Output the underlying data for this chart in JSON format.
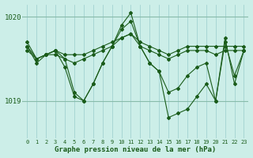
{
  "title": "Graphe pression niveau de la mer (hPa)",
  "bg_color": "#cceee8",
  "grid_color": "#99cccc",
  "line_color": "#1a5c1a",
  "xlim": [
    -0.5,
    23.5
  ],
  "ylim": [
    1018.55,
    1020.15
  ],
  "yticks": [
    1019,
    1020
  ],
  "xticks": [
    0,
    1,
    2,
    3,
    4,
    5,
    6,
    7,
    8,
    9,
    10,
    11,
    12,
    13,
    14,
    15,
    16,
    17,
    18,
    19,
    20,
    21,
    22,
    23
  ],
  "series": [
    [
      1019.65,
      1019.5,
      1019.55,
      1019.6,
      1019.55,
      1019.55,
      1019.55,
      1019.6,
      1019.65,
      1019.7,
      1019.75,
      1019.8,
      1019.7,
      1019.65,
      1019.6,
      1019.55,
      1019.6,
      1019.65,
      1019.65,
      1019.65,
      1019.65,
      1019.65,
      1019.65,
      1019.65
    ],
    [
      1019.65,
      1019.45,
      1019.55,
      1019.6,
      1019.5,
      1019.45,
      1019.5,
      1019.55,
      1019.6,
      1019.65,
      1019.75,
      1019.8,
      1019.65,
      1019.6,
      1019.55,
      1019.5,
      1019.55,
      1019.6,
      1019.6,
      1019.6,
      1019.55,
      1019.6,
      1019.6,
      1019.6
    ],
    [
      1019.6,
      1019.5,
      1019.55,
      1019.55,
      1019.5,
      1019.1,
      1019.0,
      1019.2,
      1019.45,
      1019.65,
      1019.85,
      1019.95,
      1019.65,
      1019.45,
      1019.35,
      1019.1,
      1019.15,
      1019.3,
      1019.4,
      1019.45,
      1019.0,
      1019.7,
      1019.3,
      1019.6
    ],
    [
      1019.7,
      1019.5,
      1019.55,
      1019.6,
      1019.4,
      1019.05,
      1019.0,
      1019.2,
      1019.45,
      1019.65,
      1019.9,
      1020.05,
      1019.65,
      1019.45,
      1019.35,
      1018.8,
      1018.85,
      1018.9,
      1019.05,
      1019.2,
      1019.0,
      1019.75,
      1019.2,
      1019.6
    ]
  ]
}
